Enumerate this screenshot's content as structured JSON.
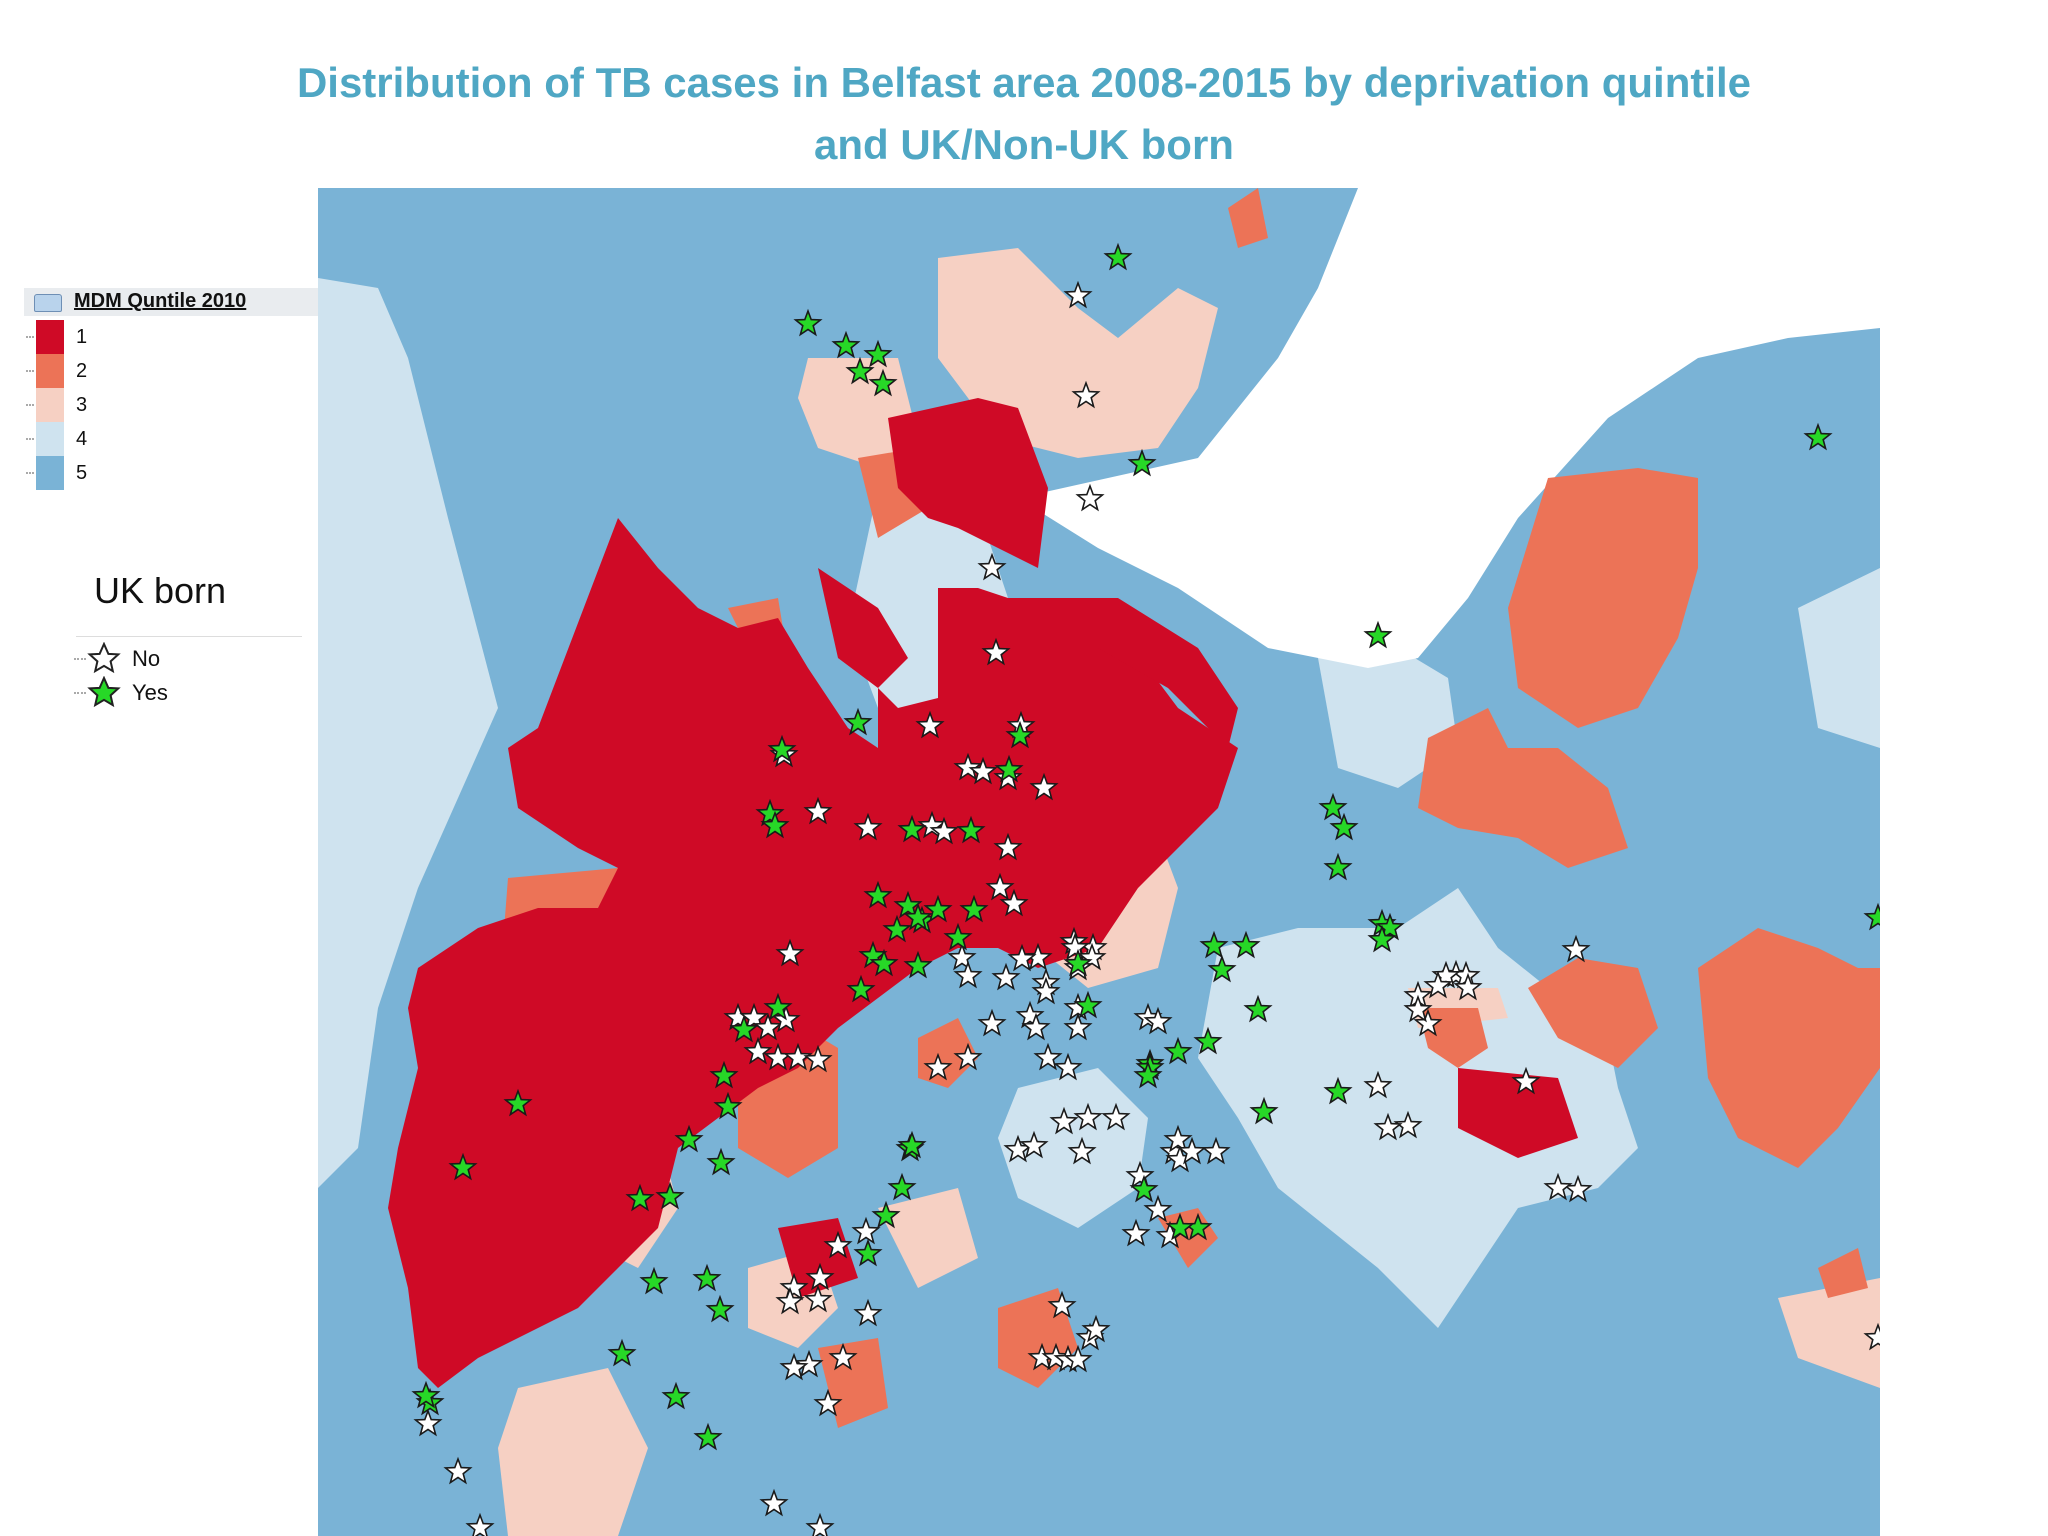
{
  "title": {
    "line1": "Distribution of TB cases in Belfast area 2008-2015 by deprivation quintile",
    "line2": "and UK/Non-UK born"
  },
  "legend_mdm": {
    "title": "MDM Quntile 2010",
    "items": [
      {
        "label": "1",
        "color": "#cf0a26"
      },
      {
        "label": "2",
        "color": "#ec7357"
      },
      {
        "label": "3",
        "color": "#f6d0c3"
      },
      {
        "label": "4",
        "color": "#cfe3ef"
      },
      {
        "label": "5",
        "color": "#7ab3d6"
      }
    ]
  },
  "legend_uk": {
    "title": "UK born",
    "items": [
      {
        "label": "No",
        "color": "#ffffff"
      },
      {
        "label": "Yes",
        "color": "#27d827"
      }
    ]
  },
  "colors": {
    "quintile_1": "#cf0a26",
    "quintile_2": "#ec7357",
    "quintile_3": "#f6d0c3",
    "quintile_4": "#cfe3ef",
    "quintile_5": "#7ab3d6",
    "title": "#4fa7c4"
  }
}
